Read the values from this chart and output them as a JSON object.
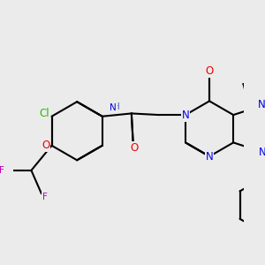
{
  "bg_color": "#ebebeb",
  "bond_color": "#000000",
  "bond_width": 1.5,
  "dbo": 0.06,
  "atom_colors": {
    "N": "#0000ee",
    "O": "#ee0000",
    "Cl": "#22bb00",
    "F": "#bb00bb",
    "H": "#4466bb",
    "C": "#000000"
  },
  "fs": 8.5,
  "fss": 7.5
}
